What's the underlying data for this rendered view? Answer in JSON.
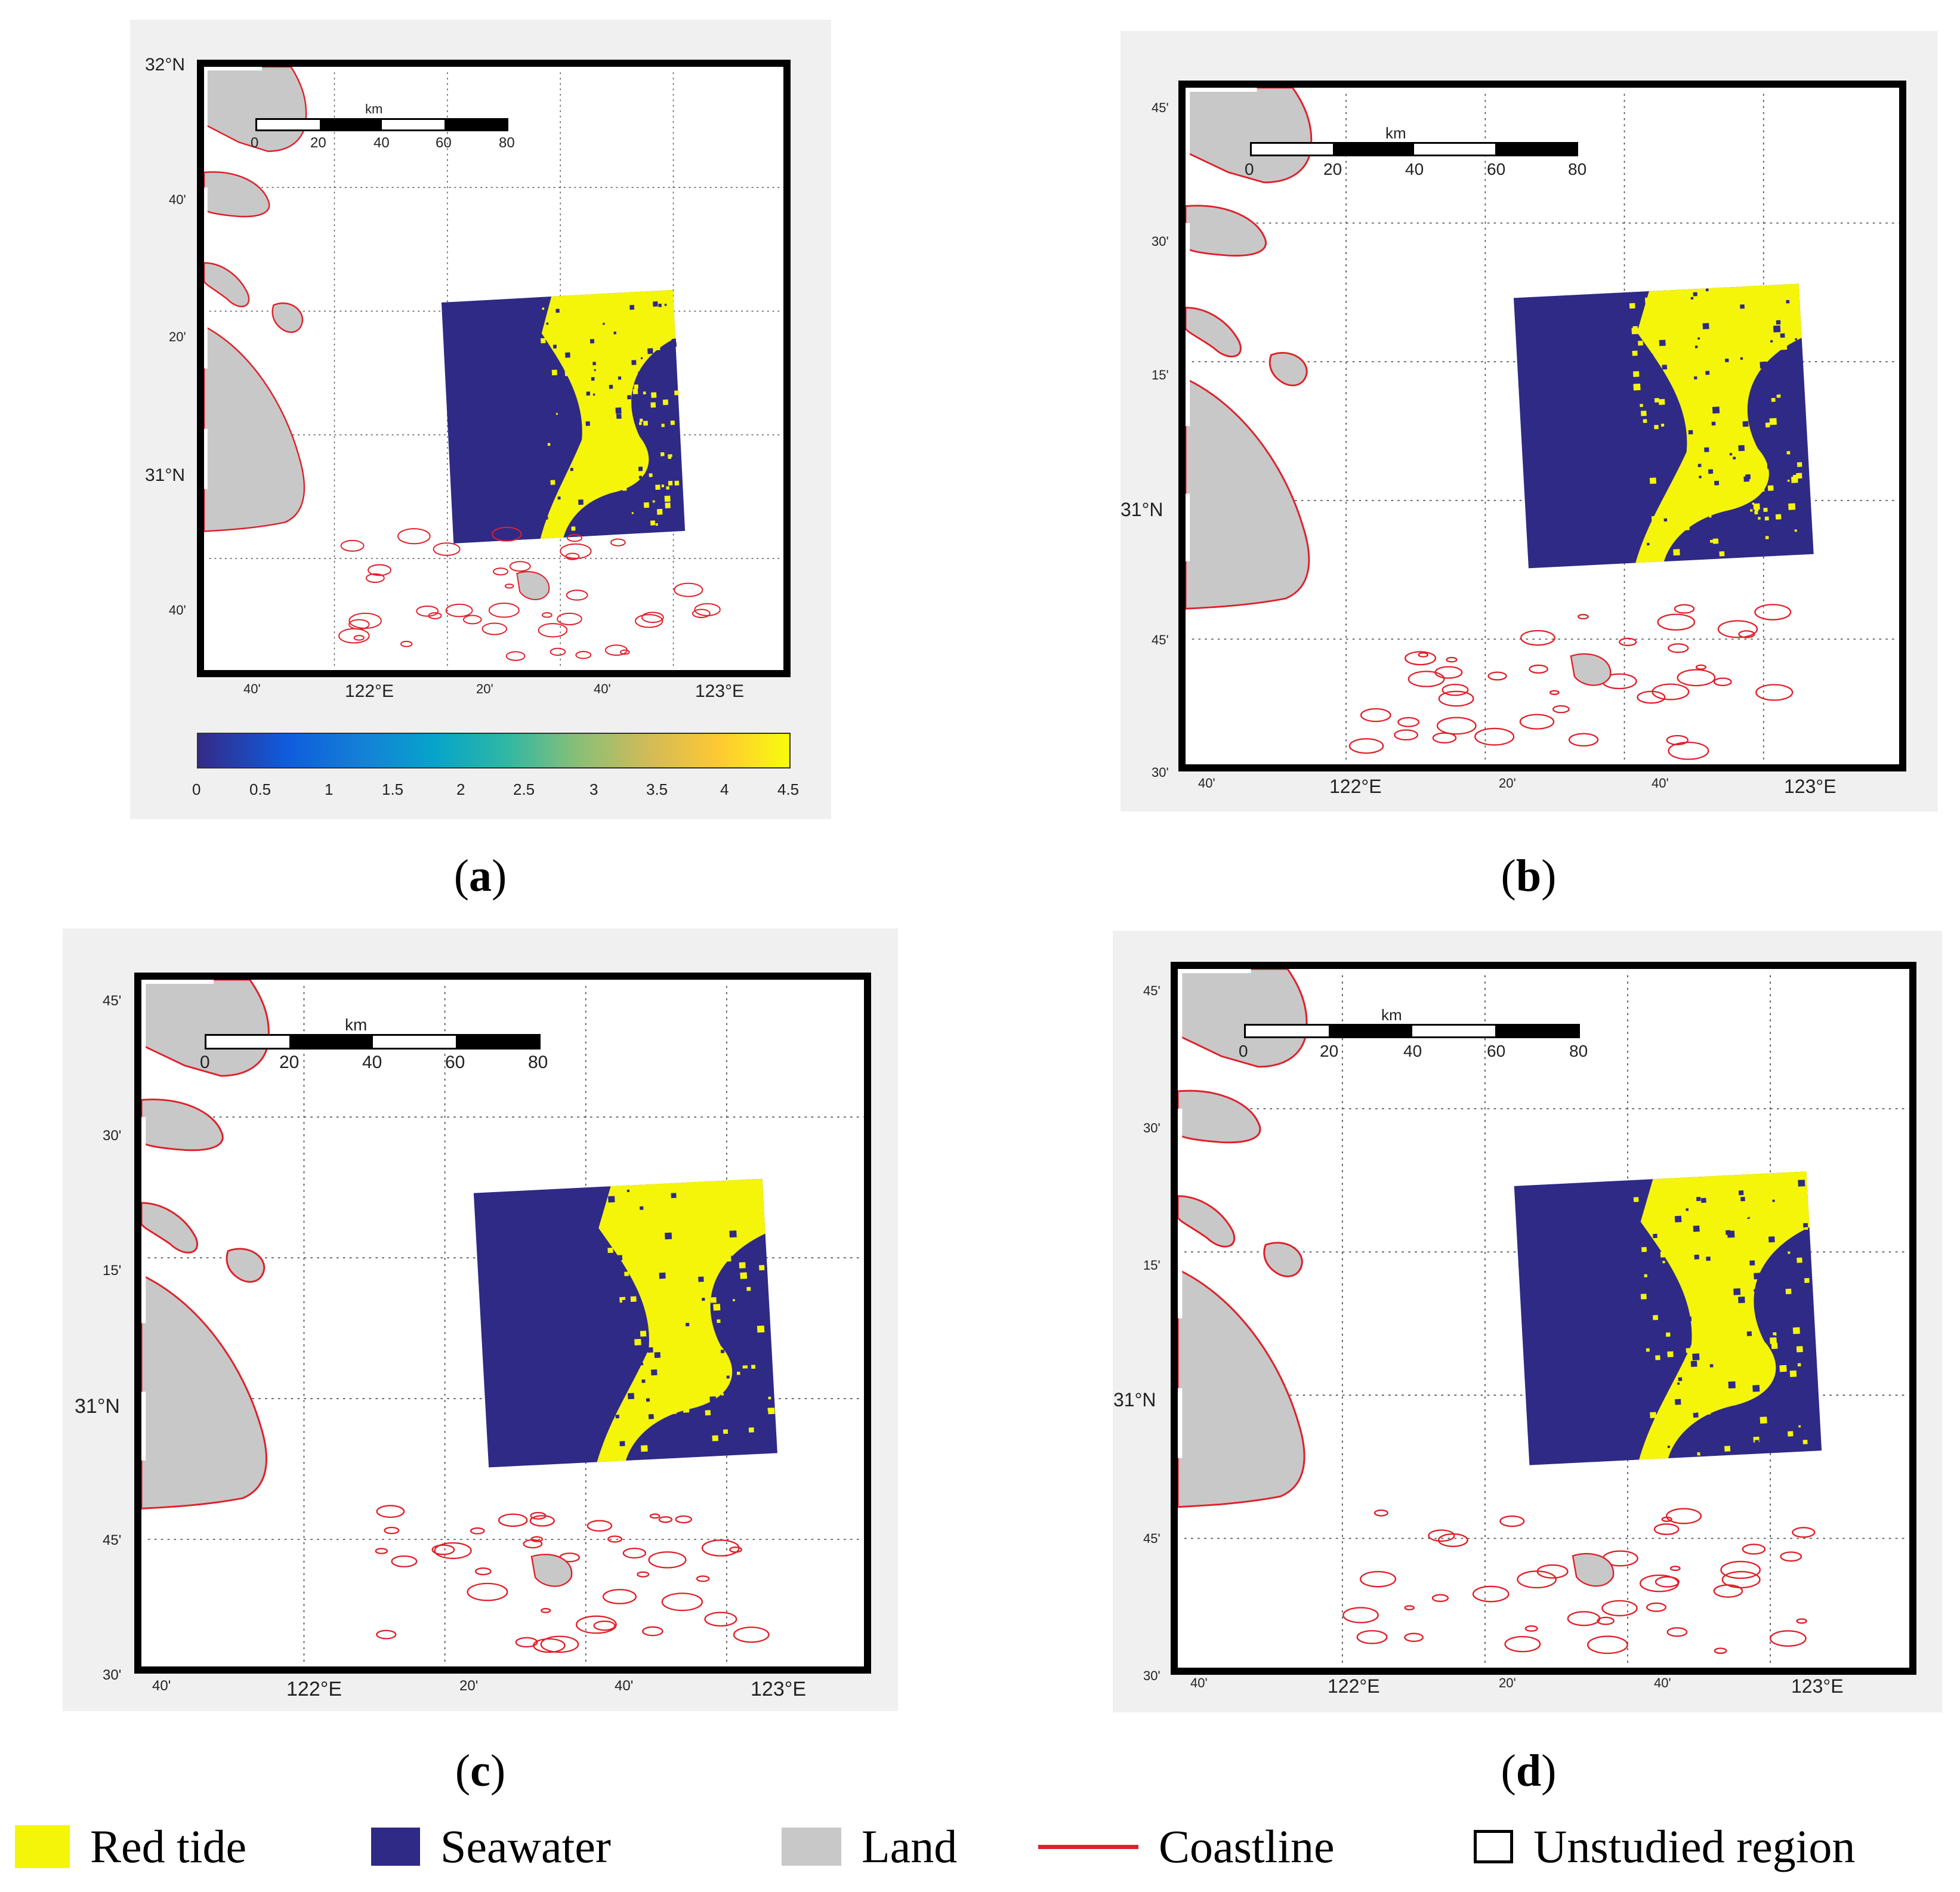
{
  "panels": [
    {
      "id": "a",
      "caption": "a",
      "lat_labels": [
        "32°N",
        "40'",
        "20'",
        "31°N",
        "40'"
      ],
      "lon_labels": [
        "40'",
        "122°E",
        "20'",
        "40'",
        "123°E"
      ],
      "scalebar": {
        "unit": "km",
        "ticks": [
          "0",
          "20",
          "40",
          "60",
          "80"
        ]
      },
      "colorbar": {
        "ticks": [
          "0",
          "0.5",
          "1",
          "1.5",
          "2",
          "2.5",
          "3",
          "3.5",
          "4",
          "4.5"
        ]
      }
    },
    {
      "id": "b",
      "caption": "b",
      "lat_labels": [
        "45'",
        "30'",
        "15'",
        "31°N",
        "45'",
        "30'"
      ],
      "lon_labels": [
        "40'",
        "122°E",
        "20'",
        "40'",
        "123°E"
      ],
      "scalebar": {
        "unit": "km",
        "ticks": [
          "0",
          "20",
          "40",
          "60",
          "80"
        ]
      }
    },
    {
      "id": "c",
      "caption": "c",
      "lat_labels": [
        "45'",
        "30'",
        "15'",
        "31°N",
        "45'",
        "30'"
      ],
      "lon_labels": [
        "40'",
        "122°E",
        "20'",
        "40'",
        "123°E"
      ],
      "scalebar": {
        "unit": "km",
        "ticks": [
          "0",
          "20",
          "40",
          "60",
          "80"
        ]
      }
    },
    {
      "id": "d",
      "caption": "d",
      "lat_labels": [
        "45'",
        "30'",
        "15'",
        "31°N",
        "45'",
        "30'"
      ],
      "lon_labels": [
        "40'",
        "122°E",
        "20'",
        "40'",
        "123°E"
      ],
      "scalebar": {
        "unit": "km",
        "ticks": [
          "0",
          "20",
          "40",
          "60",
          "80"
        ]
      }
    }
  ],
  "legend": {
    "red_tide": "Red tide",
    "seawater": "Seawater",
    "land": "Land",
    "coastline": "Coastline",
    "unstudied": "Unstudied region"
  },
  "colors": {
    "red_tide": "#f5f50a",
    "seawater": "#2e2a86",
    "land": "#c8c8c8",
    "coastline": "#e0202a",
    "grid": "#555555"
  }
}
